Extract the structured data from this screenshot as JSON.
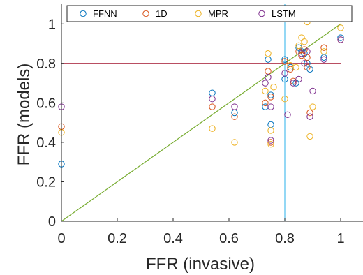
{
  "chart_data": {
    "type": "scatter",
    "xlabel": "FFR (invasive)",
    "ylabel": "FFR (models)",
    "xlim": [
      0,
      1.08
    ],
    "ylim": [
      0,
      1.1
    ],
    "x_ticks": [
      "0",
      "0.2",
      "0.4",
      "0.6",
      "0.8",
      "1"
    ],
    "y_ticks": [
      "0",
      "0.2",
      "0.4",
      "0.6",
      "0.8",
      "1"
    ],
    "grid": false,
    "legend_position": "top",
    "series": [
      {
        "name": "FFNN",
        "color": "#0072BD",
        "points": [
          [
            0,
            0.29
          ],
          [
            0.54,
            0.65
          ],
          [
            0.62,
            0.55
          ],
          [
            0.73,
            0.58
          ],
          [
            0.74,
            0.82
          ],
          [
            0.75,
            0.49
          ],
          [
            0.75,
            0.64
          ],
          [
            0.8,
            0.72
          ],
          [
            0.8,
            0.82
          ],
          [
            0.82,
            0.78
          ],
          [
            0.84,
            0.7
          ],
          [
            0.85,
            0.88
          ],
          [
            0.86,
            0.86
          ],
          [
            0.87,
            0.85
          ],
          [
            0.88,
            0.8
          ],
          [
            0.89,
            0.77
          ],
          [
            0.94,
            0.83
          ],
          [
            1.0,
            0.93
          ]
        ]
      },
      {
        "name": "1D",
        "color": "#D95319",
        "points": [
          [
            0,
            0.48
          ],
          [
            0.54,
            0.58
          ],
          [
            0.62,
            0.53
          ],
          [
            0.73,
            0.6
          ],
          [
            0.74,
            0.76
          ],
          [
            0.75,
            0.63
          ],
          [
            0.75,
            0.4
          ],
          [
            0.8,
            0.81
          ],
          [
            0.82,
            0.77
          ],
          [
            0.83,
            0.71
          ],
          [
            0.85,
            0.86
          ],
          [
            0.86,
            0.84
          ],
          [
            0.87,
            0.87
          ],
          [
            0.88,
            0.83
          ],
          [
            0.88,
            0.78
          ],
          [
            0.89,
            0.55
          ],
          [
            0.94,
            0.88
          ],
          [
            1.0,
            0.92
          ]
        ]
      },
      {
        "name": "MPR",
        "color": "#EDB120",
        "points": [
          [
            0,
            0.45
          ],
          [
            0.54,
            0.47
          ],
          [
            0.62,
            0.4
          ],
          [
            0.73,
            0.66
          ],
          [
            0.74,
            0.85
          ],
          [
            0.75,
            0.39
          ],
          [
            0.75,
            0.46
          ],
          [
            0.76,
            0.68
          ],
          [
            0.8,
            0.62
          ],
          [
            0.82,
            0.79
          ],
          [
            0.84,
            0.78
          ],
          [
            0.85,
            0.89
          ],
          [
            0.86,
            0.93
          ],
          [
            0.87,
            0.91
          ],
          [
            0.88,
            1.01
          ],
          [
            0.89,
            0.43
          ],
          [
            0.9,
            0.58
          ],
          [
            0.94,
            0.86
          ],
          [
            1.0,
            0.98
          ]
        ]
      },
      {
        "name": "LSTM",
        "color": "#7E2F8E",
        "points": [
          [
            0,
            0.58
          ],
          [
            0.54,
            0.62
          ],
          [
            0.62,
            0.58
          ],
          [
            0.73,
            0.7
          ],
          [
            0.74,
            0.73
          ],
          [
            0.75,
            0.41
          ],
          [
            0.75,
            0.58
          ],
          [
            0.8,
            0.75
          ],
          [
            0.81,
            0.54
          ],
          [
            0.83,
            0.7
          ],
          [
            0.85,
            0.72
          ],
          [
            0.86,
            0.85
          ],
          [
            0.87,
            0.8
          ],
          [
            0.88,
            0.86
          ],
          [
            0.89,
            0.53
          ],
          [
            0.9,
            0.66
          ],
          [
            0.94,
            0.82
          ],
          [
            1.0,
            0.92
          ]
        ]
      }
    ],
    "lines": [
      {
        "kind": "identity",
        "from": [
          0,
          0
        ],
        "to": [
          1,
          1
        ],
        "color": "#77AC30"
      },
      {
        "kind": "horizontal",
        "y": 0.8,
        "color": "#A2142F"
      },
      {
        "kind": "vertical",
        "x": 0.8,
        "color": "#4DBEEE"
      }
    ]
  }
}
